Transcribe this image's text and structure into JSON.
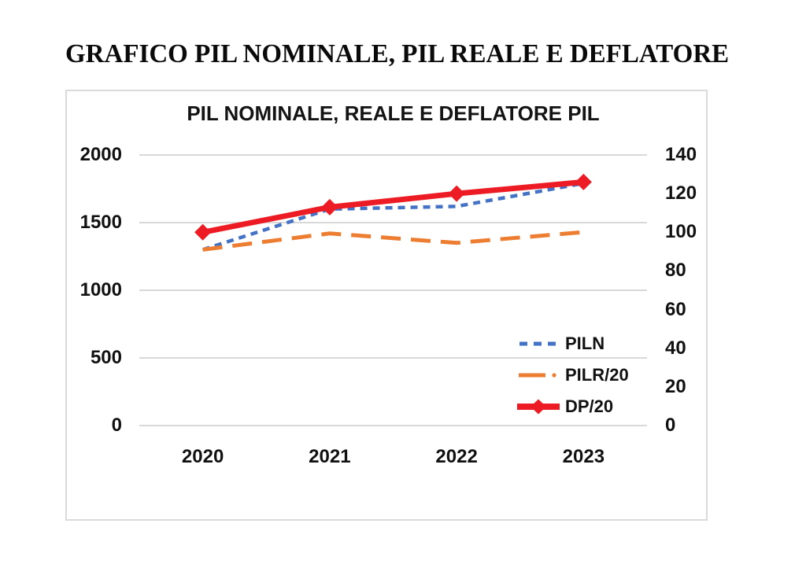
{
  "page": {
    "title": "GRAFICO PIL NOMINALE, PIL REALE E DEFLATORE"
  },
  "chart": {
    "colors": {
      "gridline": "#d3d3d3",
      "box_border": "#dadada",
      "text": "#111111"
    }
  },
  "chart_data": {
    "type": "line",
    "title": "PIL NOMINALE, REALE E DEFLATORE PIL",
    "categories": [
      "2020",
      "2021",
      "2022",
      "2023"
    ],
    "series": [
      {
        "name": "PILN",
        "axis": "left",
        "values": [
          1300,
          1600,
          1620,
          1790
        ],
        "color": "#4472C4",
        "style": "short-dash"
      },
      {
        "name": "PILR/20",
        "axis": "left",
        "values": [
          1300,
          1420,
          1350,
          1430
        ],
        "color": "#ED7D31",
        "style": "long-dash"
      },
      {
        "name": "DP/20",
        "axis": "right",
        "values": [
          100,
          113,
          120,
          126
        ],
        "color": "#ED1C24",
        "style": "solid-diamond"
      }
    ],
    "left_axis": {
      "min": 0,
      "max": 2000,
      "step": 500,
      "ticks": [
        "2000",
        "1500",
        "1000",
        "500",
        "0"
      ]
    },
    "right_axis": {
      "min": 0,
      "max": 140,
      "step": 20,
      "ticks": [
        "140",
        "120",
        "100",
        "80",
        "60",
        "40",
        "20",
        "0"
      ]
    },
    "grid": "horizontal-left-axis-only",
    "legend_position": "inside-right"
  }
}
